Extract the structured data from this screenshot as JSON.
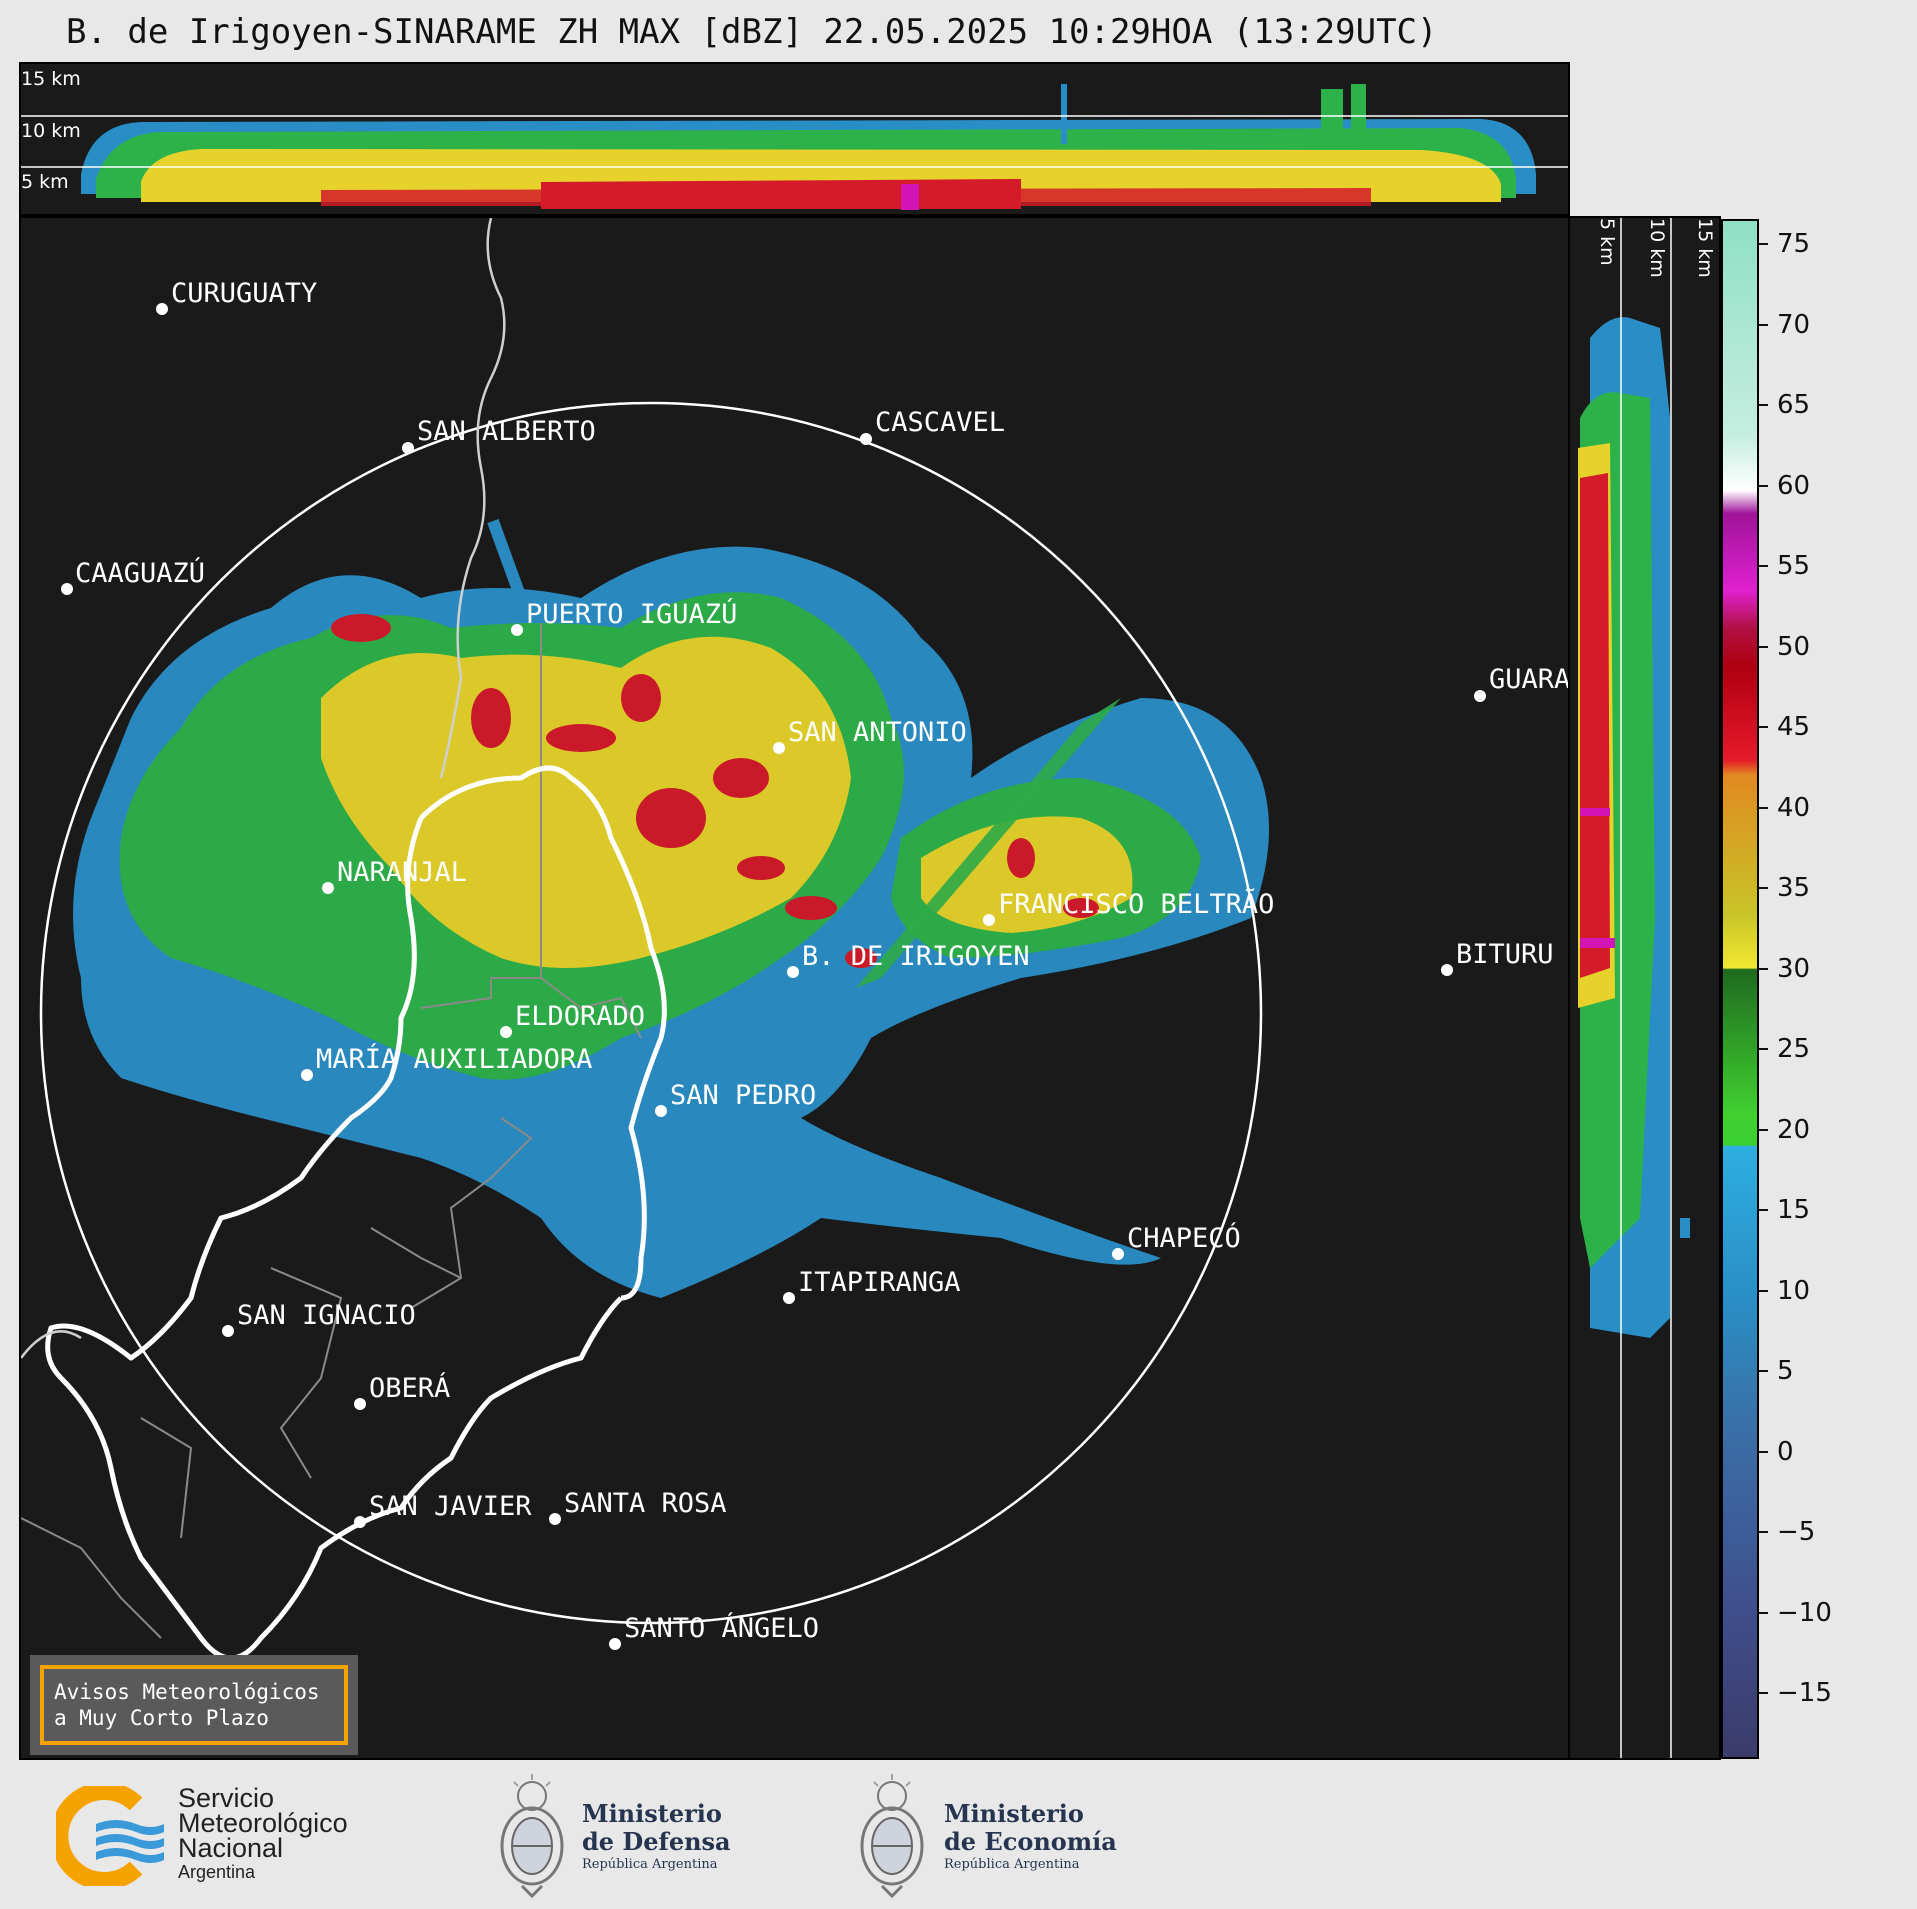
{
  "title": "B. de Irigoyen-SINARAME ZH MAX [dBZ] 22.05.2025 10:29HOA (13:29UTC)",
  "top_panel": {
    "altitude_labels": [
      "15 km",
      "10 km",
      "5 km"
    ]
  },
  "side_panel": {
    "altitude_labels": [
      "5 km",
      "10 km",
      "15 km"
    ]
  },
  "colorbar": {
    "unit": "dBZ",
    "ticks": [
      "75",
      "70",
      "65",
      "60",
      "55",
      "50",
      "45",
      "40",
      "35",
      "30",
      "25",
      "20",
      "15",
      "10",
      "5",
      "0",
      "−5",
      "−10",
      "−15"
    ],
    "colors": {
      "lt_neg15": "#3b3a6a",
      "neg15_0": "#3f5b8c",
      "0_18": "#2a8ec6",
      "18_30": "#2db24a",
      "30_42": "#e6d22a",
      "42_50": "#d41b2a",
      "50_60": "#d214b4",
      "60_62": "#ffffff",
      "62_76": "#8fe0c4"
    }
  },
  "cities": [
    {
      "name": "CURUGUATY"
    },
    {
      "name": "SAN ALBERTO"
    },
    {
      "name": "CASCAVEL"
    },
    {
      "name": "CAAGUAZÚ"
    },
    {
      "name": "PUERTO IGUAZÚ"
    },
    {
      "name": "GUARA"
    },
    {
      "name": "NARANJAL"
    },
    {
      "name": "SAN ANTONIO"
    },
    {
      "name": "FRANCISCO BELTRÃO"
    },
    {
      "name": "BITURU"
    },
    {
      "name": "B. DE IRIGOYEN"
    },
    {
      "name": "ELDORADO"
    },
    {
      "name": "MARÍA AUXILIADORA"
    },
    {
      "name": "SAN PEDRO"
    },
    {
      "name": "CHAPECÓ"
    },
    {
      "name": "ITAPIRANGA"
    },
    {
      "name": "SAN IGNACIO"
    },
    {
      "name": "OBERÁ"
    },
    {
      "name": "SAN JAVIER"
    },
    {
      "name": "SANTA ROSA"
    },
    {
      "name": "SANTO ÁNGELO"
    }
  ],
  "notice": {
    "line1": "Avisos Meteorológicos",
    "line2": "a Muy Corto Plazo"
  },
  "footer": {
    "smn": {
      "line1": "Servicio",
      "line2": "Meteorológico",
      "line3": "Nacional",
      "line4": "Argentina"
    },
    "defensa": {
      "line1": "Ministerio",
      "line2": "de Defensa",
      "line3": "República Argentina"
    },
    "economia": {
      "line1": "Ministerio",
      "line2": "de Economía",
      "line3": "República Argentina"
    }
  }
}
